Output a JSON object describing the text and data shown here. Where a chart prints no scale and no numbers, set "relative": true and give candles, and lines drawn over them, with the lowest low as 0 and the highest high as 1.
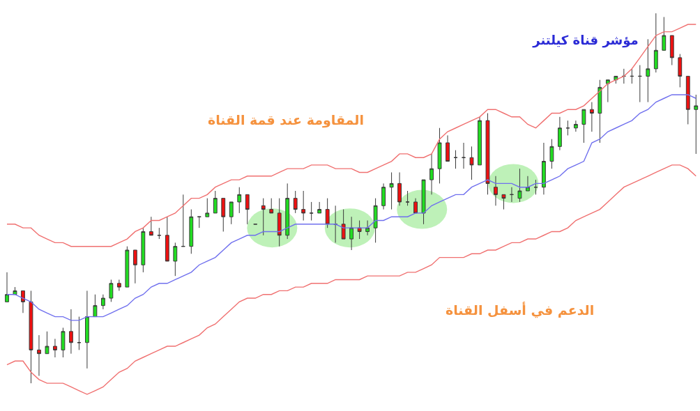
{
  "chart_data": {
    "type": "candlestick",
    "title": "مؤشر قناة كيلتنر",
    "annotations": [
      "المقاومة عند قمة القناة",
      "الدعم في أسفل القناة"
    ],
    "relative": true,
    "categories": [
      null,
      null,
      null,
      null,
      null,
      null,
      null,
      null,
      null,
      null,
      null,
      null,
      null,
      null,
      null,
      null,
      null,
      null,
      null,
      null,
      null,
      null,
      null,
      null,
      null,
      null,
      null,
      null,
      null,
      null,
      null,
      null,
      null,
      null,
      null,
      null,
      null,
      null,
      null,
      null,
      null,
      null,
      null,
      null,
      null,
      null,
      null,
      null,
      null,
      null,
      null,
      null,
      null,
      null,
      null,
      null,
      null,
      null,
      null,
      null,
      null,
      null,
      null,
      null,
      null,
      null,
      null,
      null,
      null,
      null,
      null,
      null,
      null,
      null,
      null,
      null,
      null,
      null,
      null,
      null,
      null,
      null,
      null,
      null,
      null,
      null,
      null
    ],
    "ohlc": [
      [
        0.22,
        0.3,
        0.22,
        0.24
      ],
      [
        0.24,
        0.26,
        0.24,
        0.25
      ],
      [
        0.25,
        0.25,
        0.19,
        0.22
      ],
      [
        0.22,
        0.25,
        0,
        0.09
      ],
      [
        0.09,
        0.13,
        0.02,
        0.08
      ],
      [
        0.08,
        0.14,
        0.08,
        0.1
      ],
      [
        0.1,
        0.12,
        0.07,
        0.09
      ],
      [
        0.09,
        0.15,
        0.07,
        0.14
      ],
      [
        0.14,
        0.2,
        0.08,
        0.11
      ],
      [
        0.11,
        0.18,
        0.09,
        0.11
      ],
      [
        0.11,
        0.25,
        0.04,
        0.18
      ],
      [
        0.18,
        0.24,
        0.18,
        0.21
      ],
      [
        0.21,
        0.24,
        0.2,
        0.23
      ],
      [
        0.23,
        0.28,
        0.22,
        0.27
      ],
      [
        0.27,
        0.28,
        0.25,
        0.26
      ],
      [
        0.26,
        0.37,
        0.26,
        0.36
      ],
      [
        0.36,
        0.36,
        0.27,
        0.32
      ],
      [
        0.32,
        0.42,
        0.3,
        0.41
      ],
      [
        0.41,
        0.45,
        0.4,
        0.4
      ],
      [
        0.4,
        0.42,
        0.39,
        0.4
      ],
      [
        0.4,
        0.45,
        0.33,
        0.33
      ],
      [
        0.33,
        0.38,
        0.29,
        0.37
      ],
      [
        0.37,
        0.51,
        0.37,
        0.37
      ],
      [
        0.37,
        0.47,
        0.35,
        0.45
      ],
      [
        0.45,
        0.45,
        0.42,
        0.45
      ],
      [
        0.45,
        0.5,
        0.45,
        0.46
      ],
      [
        0.46,
        0.52,
        0.46,
        0.5
      ],
      [
        0.5,
        0.5,
        0.41,
        0.45
      ],
      [
        0.45,
        0.49,
        0.43,
        0.49
      ],
      [
        0.49,
        0.53,
        0.46,
        0.51
      ],
      [
        0.51,
        0.51,
        0.43,
        0.47
      ],
      [
        0.43,
        0.43,
        0.43,
        0.43
      ],
      [
        0.48,
        0.5,
        0.4,
        0.47
      ],
      [
        0.47,
        0.5,
        0.46,
        0.46
      ],
      [
        0.46,
        0.5,
        0.37,
        0.4
      ],
      [
        0.4,
        0.54,
        0.39,
        0.5
      ],
      [
        0.5,
        0.52,
        0.46,
        0.47
      ],
      [
        0.47,
        0.52,
        0.44,
        0.46
      ],
      [
        0.46,
        0.49,
        0.44,
        0.46
      ],
      [
        0.46,
        0.49,
        0.46,
        0.47
      ],
      [
        0.47,
        0.5,
        0.42,
        0.43
      ],
      [
        0.43,
        0.48,
        0.38,
        0.43
      ],
      [
        0.43,
        0.47,
        0.39,
        0.39
      ],
      [
        0.39,
        0.45,
        0.36,
        0.42
      ],
      [
        0.42,
        0.44,
        0.39,
        0.41
      ],
      [
        0.41,
        0.44,
        0.4,
        0.42
      ],
      [
        0.42,
        0.5,
        0.38,
        0.48
      ],
      [
        0.48,
        0.54,
        0.47,
        0.53
      ],
      [
        0.53,
        0.57,
        0.47,
        0.54
      ],
      [
        0.54,
        0.57,
        0.48,
        0.49
      ],
      [
        0.49,
        0.52,
        0.48,
        0.49
      ],
      [
        0.49,
        0.5,
        0.46,
        0.46
      ],
      [
        0.46,
        0.55,
        0.43,
        0.55
      ],
      [
        0.55,
        0.62,
        0.51,
        0.58
      ],
      [
        0.58,
        0.69,
        0.54,
        0.65
      ],
      [
        0.65,
        0.67,
        0.6,
        0.6
      ],
      [
        0.61,
        0.63,
        0.58,
        0.61
      ],
      [
        0.61,
        0.65,
        0.58,
        0.61
      ],
      [
        0.61,
        0.64,
        0.55,
        0.59
      ],
      [
        0.59,
        0.72,
        0.59,
        0.71
      ],
      [
        0.71,
        0.73,
        0.51,
        0.54
      ],
      [
        0.53,
        0.56,
        0.48,
        0.51
      ],
      [
        0.51,
        0.51,
        0.47,
        0.5
      ],
      [
        0.51,
        0.53,
        0.49,
        0.51
      ],
      [
        0.5,
        0.58,
        0.49,
        0.52
      ],
      [
        0.52,
        0.56,
        0.52,
        0.53
      ],
      [
        0.53,
        0.55,
        0.51,
        0.53
      ],
      [
        0.53,
        0.65,
        0.51,
        0.6
      ],
      [
        0.6,
        0.66,
        0.58,
        0.64
      ],
      [
        0.64,
        0.72,
        0.63,
        0.69
      ],
      [
        0.69,
        0.71,
        0.67,
        0.69
      ],
      [
        0.69,
        0.71,
        0.68,
        0.7
      ],
      [
        0.7,
        0.74,
        0.65,
        0.74
      ],
      [
        0.74,
        0.76,
        0.68,
        0.73
      ],
      [
        0.73,
        0.82,
        0.65,
        0.8
      ],
      [
        0.81,
        0.82,
        0.76,
        0.82
      ],
      [
        0.82,
        0.83,
        0.81,
        0.83
      ],
      [
        0.83,
        0.85,
        0.81,
        0.83
      ],
      [
        0.83,
        0.85,
        0.81,
        0.83
      ],
      [
        0.83,
        0.86,
        0.76,
        0.83
      ],
      [
        0.83,
        0.93,
        0.76,
        0.85
      ],
      [
        0.85,
        1.0,
        0.84,
        0.9
      ],
      [
        0.9,
        0.99,
        0.9,
        0.94
      ],
      [
        0.94,
        0.94,
        0.86,
        0.88
      ],
      [
        0.88,
        0.89,
        0.8,
        0.83
      ],
      [
        0.83,
        0.83,
        0.7,
        0.74
      ],
      [
        0.74,
        0.78,
        0.62,
        0.75
      ]
    ],
    "colors": [
      "#22dd22",
      "#22dd22",
      "#ee1111",
      "#ee1111",
      "#ee1111",
      "#22dd22",
      "#ee1111",
      "#22dd22",
      "#ee1111",
      "#3a3a3a",
      "#22dd22",
      "#22dd22",
      "#22dd22",
      "#22dd22",
      "#ee1111",
      "#22dd22",
      "#ee1111",
      "#22dd22",
      "#ee1111",
      "#3a3a3a",
      "#ee1111",
      "#22dd22",
      "#3a3a3a",
      "#22dd22",
      "#3a3a3a",
      "#22dd22",
      "#22dd22",
      "#ee1111",
      "#22dd22",
      "#22dd22",
      "#ee1111",
      "#3a3a3a",
      "#ee1111",
      "#ee1111",
      "#ee1111",
      "#22dd22",
      "#ee1111",
      "#ee1111",
      "#3a3a3a",
      "#22dd22",
      "#ee1111",
      "#3a3a3a",
      "#ee1111",
      "#22dd22",
      "#ee1111",
      "#22dd22",
      "#22dd22",
      "#22dd22",
      "#22dd22",
      "#ee1111",
      "#3a3a3a",
      "#ee1111",
      "#22dd22",
      "#22dd22",
      "#22dd22",
      "#ee1111",
      "#3a3a3a",
      "#3a3a3a",
      "#ee1111",
      "#22dd22",
      "#ee1111",
      "#ee1111",
      "#ee1111",
      "#3a3a3a",
      "#22dd22",
      "#22dd22",
      "#3a3a3a",
      "#22dd22",
      "#22dd22",
      "#22dd22",
      "#3a3a3a",
      "#22dd22",
      "#22dd22",
      "#ee1111",
      "#22dd22",
      "#22dd22",
      "#22dd22",
      "#3a3a3a",
      "#3a3a3a",
      "#3a3a3a",
      "#22dd22",
      "#22dd22",
      "#22dd22",
      "#ee1111",
      "#ee1111",
      "#ee1111",
      "#22dd22"
    ],
    "series": [
      {
        "type": "line",
        "color": "#f07070",
        "values": [
          0.43,
          0.43,
          0.42,
          0.42,
          0.4,
          0.39,
          0.38,
          0.38,
          0.37,
          0.37,
          0.37,
          0.37,
          0.37,
          0.37,
          0.38,
          0.39,
          0.41,
          0.42,
          0.44,
          0.44,
          0.45,
          0.46,
          0.48,
          0.5,
          0.5,
          0.51,
          0.53,
          0.54,
          0.55,
          0.55,
          0.56,
          0.56,
          0.56,
          0.56,
          0.57,
          0.58,
          0.58,
          0.58,
          0.59,
          0.59,
          0.59,
          0.58,
          0.58,
          0.58,
          0.57,
          0.57,
          0.58,
          0.59,
          0.6,
          0.62,
          0.62,
          0.61,
          0.61,
          0.62,
          0.66,
          0.68,
          0.69,
          0.7,
          0.71,
          0.72,
          0.74,
          0.74,
          0.73,
          0.72,
          0.72,
          0.7,
          0.69,
          0.71,
          0.73,
          0.73,
          0.74,
          0.74,
          0.75,
          0.77,
          0.79,
          0.81,
          0.82,
          0.83,
          0.85,
          0.88,
          0.91,
          0.94,
          0.95,
          0.95,
          0.96,
          0.97,
          0.97
        ]
      },
      {
        "type": "line",
        "color": "#7070ee",
        "values": [
          0.24,
          0.24,
          0.23,
          0.22,
          0.2,
          0.19,
          0.18,
          0.18,
          0.17,
          0.17,
          0.18,
          0.18,
          0.18,
          0.19,
          0.2,
          0.21,
          0.23,
          0.24,
          0.26,
          0.27,
          0.27,
          0.28,
          0.29,
          0.3,
          0.32,
          0.33,
          0.34,
          0.36,
          0.38,
          0.39,
          0.4,
          0.4,
          0.41,
          0.41,
          0.41,
          0.42,
          0.43,
          0.43,
          0.43,
          0.43,
          0.43,
          0.43,
          0.42,
          0.42,
          0.42,
          0.42,
          0.44,
          0.44,
          0.45,
          0.45,
          0.45,
          0.46,
          0.46,
          0.48,
          0.49,
          0.5,
          0.51,
          0.51,
          0.53,
          0.54,
          0.55,
          0.54,
          0.54,
          0.54,
          0.53,
          0.53,
          0.54,
          0.54,
          0.55,
          0.56,
          0.58,
          0.59,
          0.6,
          0.65,
          0.66,
          0.68,
          0.69,
          0.7,
          0.71,
          0.73,
          0.74,
          0.76,
          0.77,
          0.78,
          0.78,
          0.78,
          0.77
        ]
      },
      {
        "type": "line",
        "color": "#f07070",
        "values": [
          0.05,
          0.06,
          0.06,
          0.03,
          0.01,
          0.0,
          0.0,
          0.0,
          -0.01,
          -0.02,
          -0.03,
          -0.02,
          -0.01,
          0.01,
          0.03,
          0.04,
          0.06,
          0.07,
          0.08,
          0.09,
          0.1,
          0.1,
          0.11,
          0.12,
          0.13,
          0.15,
          0.16,
          0.18,
          0.2,
          0.22,
          0.23,
          0.23,
          0.24,
          0.24,
          0.25,
          0.25,
          0.26,
          0.26,
          0.27,
          0.27,
          0.27,
          0.28,
          0.28,
          0.28,
          0.28,
          0.29,
          0.29,
          0.29,
          0.29,
          0.29,
          0.3,
          0.3,
          0.31,
          0.32,
          0.34,
          0.34,
          0.34,
          0.34,
          0.35,
          0.35,
          0.36,
          0.36,
          0.37,
          0.38,
          0.38,
          0.39,
          0.39,
          0.4,
          0.41,
          0.41,
          0.42,
          0.44,
          0.45,
          0.46,
          0.47,
          0.49,
          0.51,
          0.53,
          0.54,
          0.55,
          0.56,
          0.57,
          0.58,
          0.59,
          0.59,
          0.58,
          0.56
        ]
      }
    ]
  }
}
